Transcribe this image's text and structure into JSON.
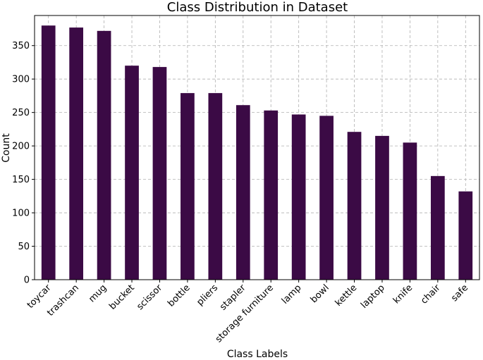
{
  "chart_data": {
    "type": "bar",
    "title": "Class Distribution in Dataset",
    "xlabel": "Class Labels",
    "ylabel": "Count",
    "categories": [
      "toycar",
      "trashcan",
      "mug",
      "bucket",
      "scissor",
      "bottle",
      "pliers",
      "stapler",
      "storage furniture",
      "lamp",
      "bowl",
      "kettle",
      "laptop",
      "knife",
      "chair",
      "safe"
    ],
    "values": [
      380,
      377,
      372,
      320,
      318,
      279,
      279,
      261,
      253,
      247,
      245,
      221,
      215,
      205,
      155,
      132
    ],
    "ylim": [
      0,
      395
    ],
    "yticks": [
      0,
      50,
      100,
      150,
      200,
      250,
      300,
      350
    ],
    "grid": true,
    "bar_color": "#3b0a45"
  }
}
